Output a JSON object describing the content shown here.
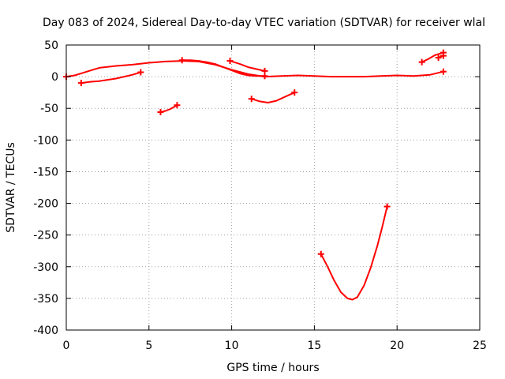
{
  "chart_data": {
    "type": "scatter",
    "title": "Day 083 of 2024, Sidereal Day-to-day VTEC variation (SDTVAR) for receiver wlal",
    "xlabel": "GPS time / hours",
    "ylabel": "SDTVAR / TECUs",
    "xlim": [
      0,
      25
    ],
    "ylim": [
      -400,
      50
    ],
    "xticks": [
      0,
      5,
      10,
      15,
      20,
      25
    ],
    "yticks": [
      50,
      0,
      -50,
      -100,
      -150,
      -200,
      -250,
      -300,
      -350,
      -400
    ],
    "xtick_labels": [
      "0",
      "5",
      "10",
      "15",
      "20",
      "25"
    ],
    "ytick_labels": [
      "50",
      "0",
      "-50",
      "-100",
      "-150",
      "-200",
      "-250",
      "-300",
      "-350",
      "-400"
    ],
    "grid": true,
    "color": "#ff0000",
    "marker": "plus",
    "series": [
      {
        "x": [
          0.0,
          0.5,
          1.0,
          1.5,
          2.0,
          3.0,
          4.0,
          5.0,
          6.0,
          7.0,
          8.0,
          9.0,
          10.0,
          11.0,
          12.0,
          13.0,
          14.0,
          15.0,
          16.0,
          17.0,
          18.0,
          19.0,
          20.0,
          21.0,
          22.0,
          22.8
        ],
        "y": [
          0,
          2,
          6,
          10,
          14,
          17,
          19,
          22,
          24,
          25,
          24,
          19,
          11,
          4,
          0,
          1,
          2,
          1,
          0,
          0,
          0,
          1,
          2,
          1,
          3,
          8
        ]
      },
      {
        "x": [
          0.9,
          1.5,
          2.0,
          2.5,
          3.0,
          3.5,
          4.0,
          4.5
        ],
        "y": [
          -10,
          -8,
          -7,
          -5,
          -3,
          0,
          3,
          7
        ]
      },
      {
        "x": [
          5.7,
          6.0,
          6.3,
          6.7
        ],
        "y": [
          -56,
          -54,
          -51,
          -45
        ]
      },
      {
        "x": [
          7.0,
          7.5,
          8.0,
          8.5,
          9.0,
          9.5,
          10.0,
          10.5,
          11.0,
          11.5,
          12.0
        ],
        "y": [
          26,
          26,
          25,
          23,
          20,
          15,
          10,
          5,
          2,
          1,
          1
        ]
      },
      {
        "x": [
          9.9,
          10.5,
          11.0,
          11.5,
          12.0
        ],
        "y": [
          25,
          20,
          15,
          12,
          9
        ]
      },
      {
        "x": [
          11.2,
          11.7,
          12.2,
          12.7,
          13.2,
          13.8
        ],
        "y": [
          -35,
          -39,
          -41,
          -38,
          -32,
          -25
        ]
      },
      {
        "x": [
          15.4,
          15.8,
          16.2,
          16.6,
          17.0,
          17.3,
          17.6,
          18.0,
          18.4,
          18.8,
          19.1,
          19.4
        ],
        "y": [
          -280,
          -300,
          -322,
          -340,
          -350,
          -352,
          -348,
          -330,
          -302,
          -268,
          -238,
          -205
        ]
      },
      {
        "x": [
          21.5,
          21.9,
          22.3,
          22.8
        ],
        "y": [
          23,
          28,
          34,
          38
        ]
      },
      {
        "x": [
          22.5,
          22.8
        ],
        "y": [
          30,
          33
        ]
      }
    ]
  }
}
